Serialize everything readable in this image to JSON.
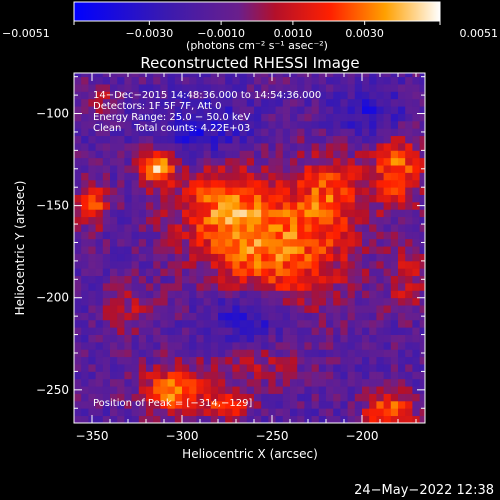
{
  "chart_data": {
    "type": "heatmap",
    "title": "Reconstructed RHESSI Image",
    "xlabel": "Heliocentric X (arcsec)",
    "ylabel": "Heliocentric Y (arcsec)",
    "xlim": [
      -360,
      -165
    ],
    "ylim": [
      -268,
      -78
    ],
    "x_ticks": [
      {
        "value": -350,
        "label": "−350"
      },
      {
        "value": -300,
        "label": "−300"
      },
      {
        "value": -250,
        "label": "−250"
      },
      {
        "value": -200,
        "label": "−200"
      }
    ],
    "y_ticks": [
      {
        "value": -100,
        "label": "−100"
      },
      {
        "value": -150,
        "label": "−150"
      },
      {
        "value": -200,
        "label": "−200"
      },
      {
        "value": -250,
        "label": "−250"
      }
    ],
    "colorbar": {
      "range": [
        -0.0051,
        0.0051
      ],
      "ticks": [
        {
          "value": -0.0051,
          "label": "−0.0051"
        },
        {
          "value": -0.003,
          "label": "−0.0030"
        },
        {
          "value": -0.001,
          "label": "−0.0010"
        },
        {
          "value": 0.001,
          "label": "0.0010"
        },
        {
          "value": 0.003,
          "label": "0.0030"
        },
        {
          "value": 0.0051,
          "label": "0.0051"
        }
      ],
      "units": "(photons cm⁻² s⁻¹ asec⁻²)"
    },
    "annotations": [
      "14−Dec−2015 14:48:36.000 to 14:54:36.000",
      "Detectors: 1F 5F 7F, Att 0",
      "Energy Range: 25.0 − 50.0 keV",
      "Clean    Total counts: 4.22E+03"
    ],
    "peak_label": "Position of Peak = [−314,−129]",
    "sources": [
      {
        "x": -248,
        "y": -175,
        "sx": 28,
        "sy": 22,
        "amp": 0.0042
      },
      {
        "x": -278,
        "y": -148,
        "sx": 20,
        "sy": 16,
        "amp": 0.0034
      },
      {
        "x": -218,
        "y": -142,
        "sx": 14,
        "sy": 16,
        "amp": 0.003
      },
      {
        "x": -314,
        "y": -129,
        "sx": 7,
        "sy": 7,
        "amp": 0.0051
      },
      {
        "x": -180,
        "y": -130,
        "sx": 10,
        "sy": 14,
        "amp": 0.004
      },
      {
        "x": -350,
        "y": -150,
        "sx": 6,
        "sy": 8,
        "amp": 0.004
      },
      {
        "x": -305,
        "y": -250,
        "sx": 12,
        "sy": 9,
        "amp": 0.0045
      },
      {
        "x": -275,
        "y": -258,
        "sx": 10,
        "sy": 6,
        "amp": 0.003
      },
      {
        "x": -185,
        "y": -262,
        "sx": 10,
        "sy": 8,
        "amp": 0.0042
      },
      {
        "x": -330,
        "y": -205,
        "sx": 10,
        "sy": 10,
        "amp": 0.0018
      },
      {
        "x": -258,
        "y": -238,
        "sx": 18,
        "sy": 8,
        "amp": 0.0015
      },
      {
        "x": -345,
        "y": -93,
        "sx": 6,
        "sy": 6,
        "amp": 0.0018
      },
      {
        "x": -175,
        "y": -190,
        "sx": 8,
        "sy": 12,
        "amp": 0.002
      },
      {
        "x": -262,
        "y": -208,
        "sx": 16,
        "sy": 10,
        "amp": -0.0028
      },
      {
        "x": -290,
        "y": -110,
        "sx": 18,
        "sy": 12,
        "amp": -0.0022
      },
      {
        "x": -195,
        "y": -100,
        "sx": 14,
        "sy": 10,
        "amp": -0.002
      }
    ],
    "noise_amplitude": 0.0011,
    "baseline": -0.0013,
    "grid_step_arcsec": 4
  },
  "footer": {
    "date": "24−May−2022 12:38"
  },
  "colors": {
    "background": "#000000",
    "foreground": "#ffffff"
  }
}
